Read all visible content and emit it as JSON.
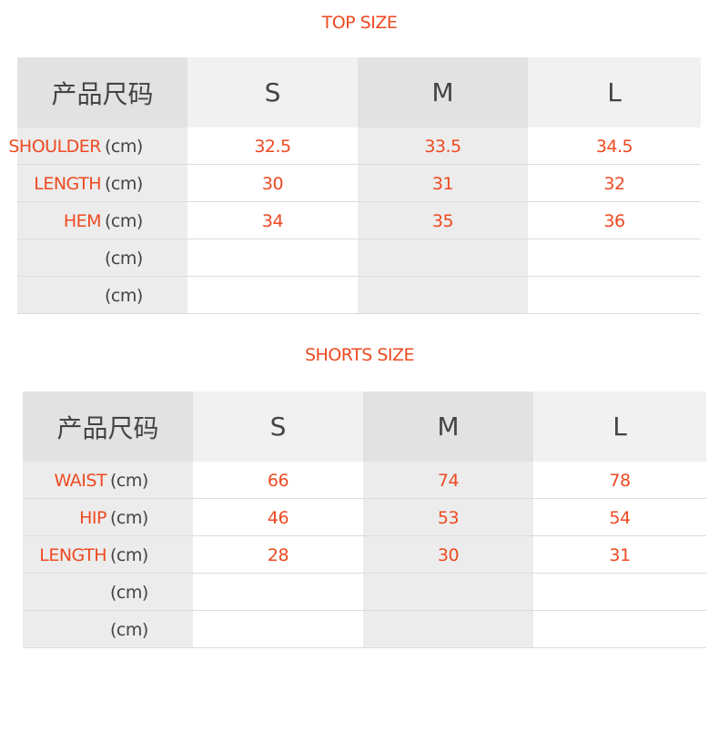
{
  "tables": [
    {
      "title": "TOP SIZE",
      "header": [
        "产品尺码",
        "S",
        "M",
        "L"
      ],
      "rows": [
        {
          "name": "SHOULDER",
          "unit": "(cm)",
          "values": [
            "32.5",
            "33.5",
            "34.5"
          ]
        },
        {
          "name": "LENGTH",
          "unit": "(cm)",
          "values": [
            "30",
            "31",
            "32"
          ]
        },
        {
          "name": "HEM",
          "unit": "(cm)",
          "values": [
            "34",
            "35",
            "36"
          ]
        },
        {
          "name": "",
          "unit": "(cm)",
          "values": [
            "",
            "",
            ""
          ]
        },
        {
          "name": "",
          "unit": "(cm)",
          "values": [
            "",
            "",
            ""
          ]
        }
      ]
    },
    {
      "title": "SHORTS SIZE",
      "header": [
        "产品尺码",
        "S",
        "M",
        "L"
      ],
      "rows": [
        {
          "name": "WAIST",
          "unit": "(cm)",
          "values": [
            "66",
            "74",
            "78"
          ]
        },
        {
          "name": "HIP",
          "unit": "(cm)",
          "values": [
            "46",
            "53",
            "54"
          ]
        },
        {
          "name": "LENGTH",
          "unit": "(cm)",
          "values": [
            "28",
            "30",
            "31"
          ]
        },
        {
          "name": "",
          "unit": "(cm)",
          "values": [
            "",
            "",
            ""
          ]
        },
        {
          "name": "",
          "unit": "(cm)",
          "values": [
            "",
            "",
            ""
          ]
        }
      ]
    }
  ],
  "colors": {
    "accent": "#ee4a22",
    "text": "#444444",
    "grey": "#ececec"
  }
}
